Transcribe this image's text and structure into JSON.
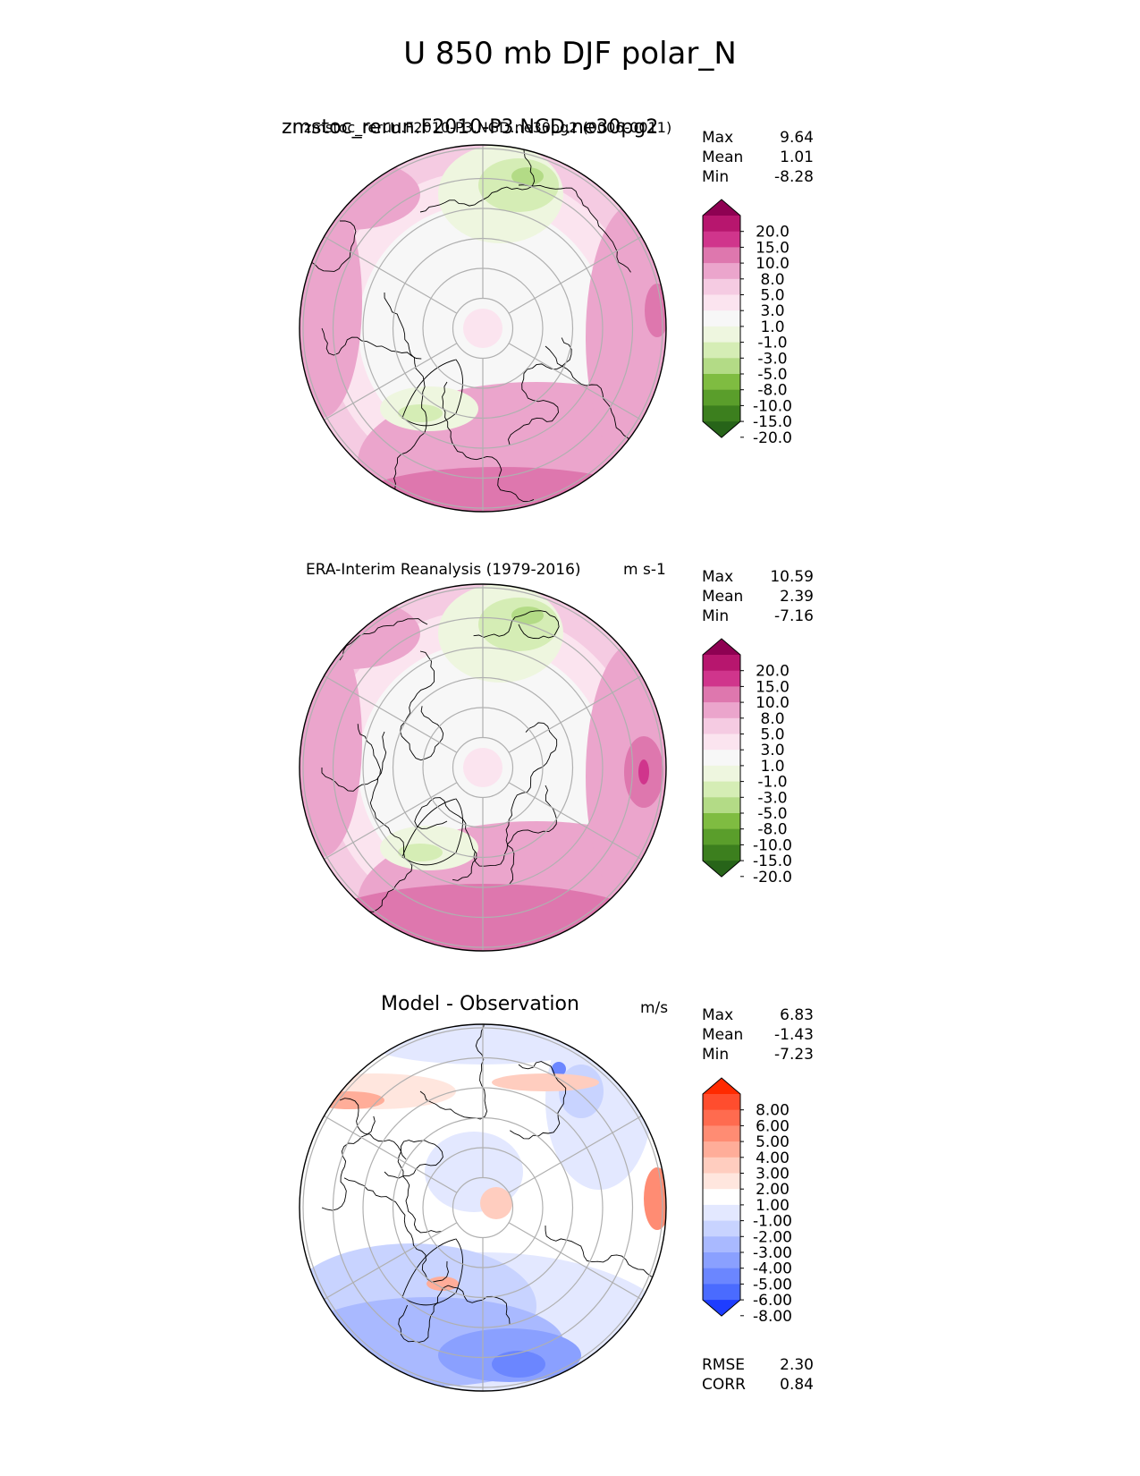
{
  "figure_title": "U 850 mb DJF polar_N",
  "panels": [
    {
      "title": "zmstoc_rerun.F2010-P3.NGD.ne30pg2",
      "title_overlap": "zmstoc_rerun.F2010-P3.NGD.ne30pg2 (0006-0011)",
      "units": "",
      "stats": {
        "max_label": "Max",
        "max": "9.64",
        "mean_label": "Mean",
        "mean": "1.01",
        "min_label": "Min",
        "min": "-8.28"
      },
      "colorbar": {
        "ticks": [
          "20.0",
          "15.0",
          "10.0",
          "8.0",
          "5.0",
          "3.0",
          "1.0",
          "-1.0",
          "-3.0",
          "-5.0",
          "-8.0",
          "-10.0",
          "-15.0",
          "-20.0"
        ],
        "colors": [
          "#8e0152",
          "#b7166e",
          "#d0358c",
          "#de77ae",
          "#eba5cc",
          "#f5cbe2",
          "#fbe4ef",
          "#f7f7f7",
          "#eef6df",
          "#d5edb5",
          "#b3db86",
          "#7fbc41",
          "#5a9e2b",
          "#3c7f1e",
          "#276419"
        ]
      }
    },
    {
      "title": "ERA-Interim Reanalysis (1979-2016)",
      "units": "m s-1",
      "stats": {
        "max_label": "Max",
        "max": "10.59",
        "mean_label": "Mean",
        "mean": "2.39",
        "min_label": "Min",
        "min": "-7.16"
      },
      "colorbar": {
        "ticks": [
          "20.0",
          "15.0",
          "10.0",
          "8.0",
          "5.0",
          "3.0",
          "1.0",
          "-1.0",
          "-3.0",
          "-5.0",
          "-8.0",
          "-10.0",
          "-15.0",
          "-20.0"
        ],
        "colors": [
          "#8e0152",
          "#b7166e",
          "#d0358c",
          "#de77ae",
          "#eba5cc",
          "#f5cbe2",
          "#fbe4ef",
          "#f7f7f7",
          "#eef6df",
          "#d5edb5",
          "#b3db86",
          "#7fbc41",
          "#5a9e2b",
          "#3c7f1e",
          "#276419"
        ]
      }
    },
    {
      "title": "Model - Observation",
      "units": "m/s",
      "stats": {
        "max_label": "Max",
        "max": "6.83",
        "mean_label": "Mean",
        "mean": "-1.43",
        "min_label": "Min",
        "min": "-7.23",
        "rmse_label": "RMSE",
        "rmse": "2.30",
        "corr_label": "CORR",
        "corr": "0.84"
      },
      "colorbar": {
        "ticks": [
          "8.00",
          "6.00",
          "5.00",
          "4.00",
          "3.00",
          "2.00",
          "1.00",
          "-1.00",
          "-2.00",
          "-3.00",
          "-4.00",
          "-5.00",
          "-6.00",
          "-8.00"
        ],
        "colors": [
          "#ff2a00",
          "#ff4d2e",
          "#ff6b4f",
          "#ff8c73",
          "#ffad99",
          "#ffcdbf",
          "#ffe6de",
          "#ffffff",
          "#e3e8ff",
          "#c8d3ff",
          "#a9b9ff",
          "#8aa0ff",
          "#6b86ff",
          "#4a6bff",
          "#1e3dff"
        ]
      }
    }
  ],
  "chart_data": [
    {
      "type": "heatmap",
      "projection": "polar stereographic (north)",
      "title": "zmstoc_rerun.F2010-P3.NGD.ne30pg2 (0006-0011)",
      "max": 9.64,
      "mean": 1.01,
      "min": -8.28,
      "levels": [
        -20,
        -15,
        -10,
        -8,
        -5,
        -3,
        -1,
        1,
        3,
        5,
        8,
        10,
        15,
        20
      ]
    },
    {
      "type": "heatmap",
      "projection": "polar stereographic (north)",
      "title": "ERA-Interim Reanalysis (1979-2016)",
      "units": "m s-1",
      "max": 10.59,
      "mean": 2.39,
      "min": -7.16,
      "levels": [
        -20,
        -15,
        -10,
        -8,
        -5,
        -3,
        -1,
        1,
        3,
        5,
        8,
        10,
        15,
        20
      ]
    },
    {
      "type": "heatmap",
      "projection": "polar stereographic (north)",
      "title": "Model - Observation",
      "units": "m/s",
      "max": 6.83,
      "mean": -1.43,
      "min": -7.23,
      "rmse": 2.3,
      "corr": 0.84,
      "levels": [
        -8,
        -6,
        -5,
        -4,
        -3,
        -2,
        -1,
        1,
        2,
        3,
        4,
        5,
        6,
        8
      ]
    }
  ]
}
